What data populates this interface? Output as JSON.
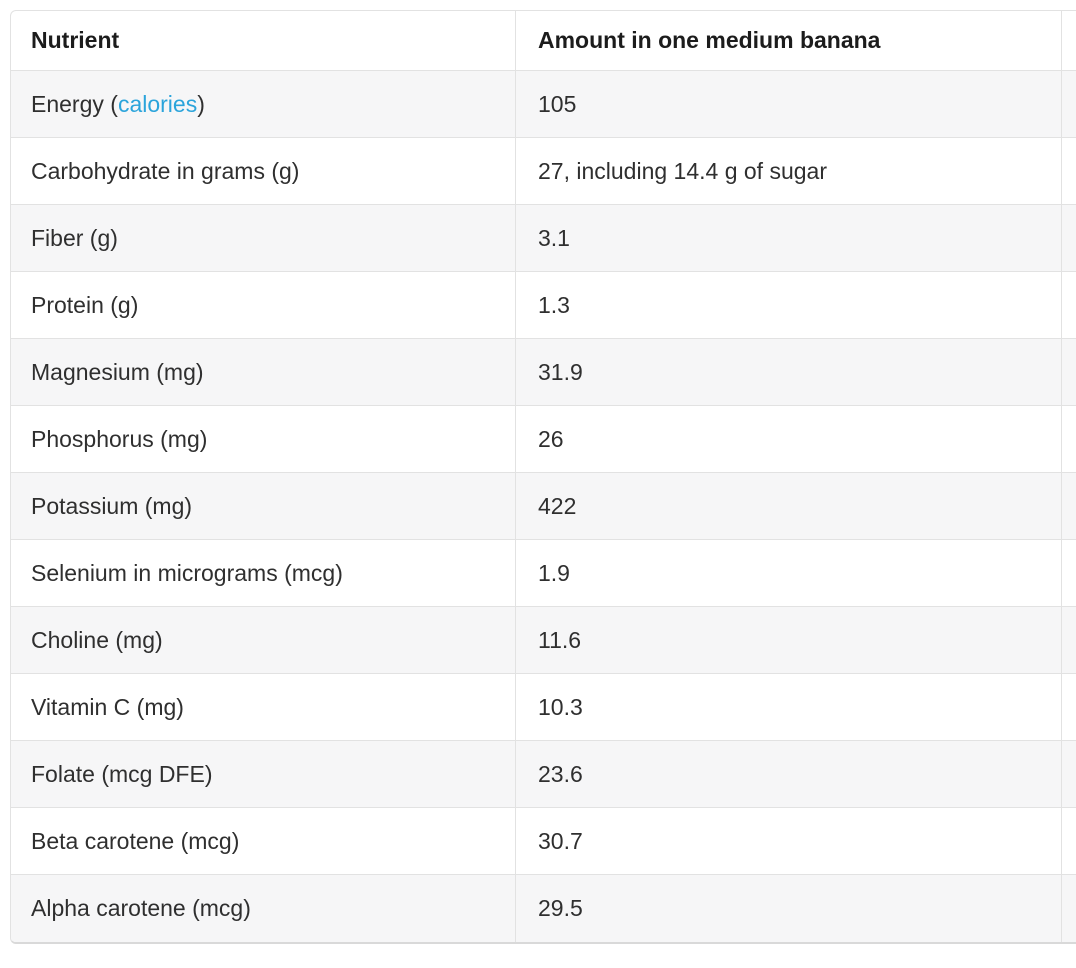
{
  "colors": {
    "link": "#2ba4db",
    "row_stripe": "#f6f6f7",
    "border": "#e2e2e2",
    "header_text": "#1c1c1c",
    "body_text": "#2f2f2f"
  },
  "table": {
    "headers": [
      "Nutrient",
      "Amount in one medium banana"
    ],
    "rows": [
      {
        "label_before": "Energy (",
        "link_text": "calories",
        "label_after": ")",
        "amount": "105"
      },
      {
        "label": "Carbohydrate in grams (g)",
        "amount": "27, including 14.4 g of sugar"
      },
      {
        "label": "Fiber (g)",
        "amount": "3.1"
      },
      {
        "label": "Protein (g)",
        "amount": "1.3"
      },
      {
        "label": "Magnesium (mg)",
        "amount": "31.9"
      },
      {
        "label": "Phosphorus (mg)",
        "amount": "26"
      },
      {
        "label": "Potassium (mg)",
        "amount": "422"
      },
      {
        "label": "Selenium in micrograms (mcg)",
        "amount": "1.9"
      },
      {
        "label": "Choline (mg)",
        "amount": "11.6"
      },
      {
        "label": "Vitamin C (mg)",
        "amount": "10.3"
      },
      {
        "label": "Folate (mcg DFE)",
        "amount": "23.6"
      },
      {
        "label": "Beta carotene (mcg)",
        "amount": "30.7"
      },
      {
        "label": "Alpha carotene (mcg)",
        "amount": "29.5"
      }
    ]
  }
}
